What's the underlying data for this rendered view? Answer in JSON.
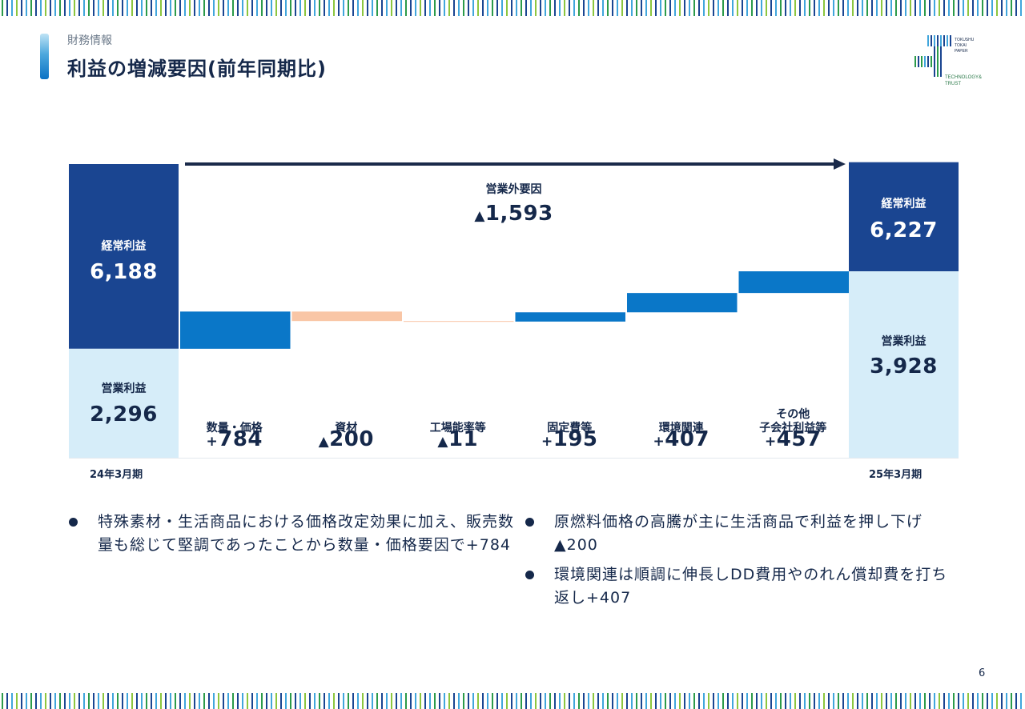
{
  "header": {
    "section_label": "財務情報",
    "title": "利益の増減要因(前年同期比)"
  },
  "logo": {
    "line1": "TOKUSHU",
    "line2": "TOKAI",
    "line3": "PAPER",
    "tagline1": "TECHNOLOGY&",
    "tagline2": "TRUST"
  },
  "chart_data": {
    "type": "bar",
    "subtype": "waterfall",
    "start": {
      "period": "24年3月期",
      "ordinary_profit_label": "経常利益",
      "ordinary_profit": "6,188",
      "operating_profit_label": "営業利益",
      "operating_profit": "2,296"
    },
    "end": {
      "period": "25年3月期",
      "ordinary_profit_label": "経常利益",
      "ordinary_profit": "6,227",
      "operating_profit_label": "営業利益",
      "operating_profit": "3,928"
    },
    "non_operating": {
      "label": "営業外要因",
      "sign": "▲",
      "value": "1,593",
      "amount": -1593
    },
    "factors": [
      {
        "label": "数量・価格",
        "sign": "+",
        "value": "784",
        "amount": 784,
        "color": "#0a77c8"
      },
      {
        "label": "資材",
        "sign": "▲",
        "value": "200",
        "amount": -200,
        "color": "#f9c6a6"
      },
      {
        "label": "工場能率等",
        "sign": "▲",
        "value": "11",
        "amount": -11,
        "color": "#f9c6a6"
      },
      {
        "label": "固定費等",
        "sign": "+",
        "value": "195",
        "amount": 195,
        "color": "#0a77c8"
      },
      {
        "label": "環境関連",
        "sign": "+",
        "value": "407",
        "amount": 407,
        "color": "#0a77c8"
      },
      {
        "label": "その他\n子会社利益等",
        "sign": "+",
        "value": "457",
        "amount": 457,
        "color": "#0a77c8"
      }
    ],
    "colors": {
      "ordinary": "#1a4591",
      "operating": "#d6edf9",
      "arrow": "#1a2a4a"
    }
  },
  "notes": {
    "left": [
      "特殊素材・生活商品における価格改定効果に加え、販売数量も総じて堅調であったことから数量・価格要因で+784"
    ],
    "right": [
      "原燃料価格の高騰が主に生活商品で利益を押し下げ▲200",
      "環境関連は順調に伸長しDD費用やのれん償却費を打ち返し+407"
    ]
  },
  "page_number": "6"
}
